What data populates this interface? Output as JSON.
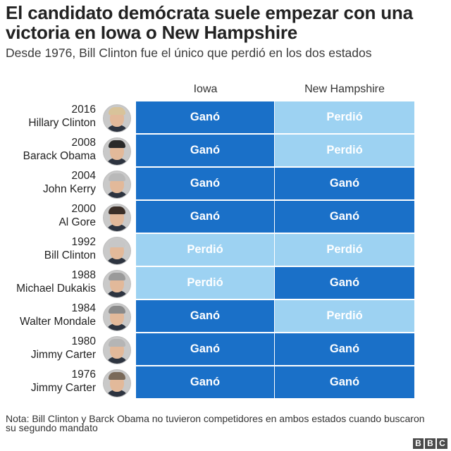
{
  "header": {
    "title": "El candidato demócrata suele empezar con una victoria en Iowa o New Hampshire",
    "subtitle": "Desde 1976, Bill Clinton fue el único que perdió en los dos estados"
  },
  "chart_data": {
    "type": "table",
    "columns": [
      "Iowa",
      "New Hampshire"
    ],
    "rows": [
      {
        "year": "2016",
        "name": "Hillary Clinton",
        "iowa": "Ganó",
        "nh": "Perdió",
        "photo": "hillary-clinton-portrait"
      },
      {
        "year": "2008",
        "name": "Barack Obama",
        "iowa": "Ganó",
        "nh": "Perdió",
        "photo": "barack-obama-portrait"
      },
      {
        "year": "2004",
        "name": "John Kerry",
        "iowa": "Ganó",
        "nh": "Ganó",
        "photo": "john-kerry-portrait"
      },
      {
        "year": "2000",
        "name": "Al Gore",
        "iowa": "Ganó",
        "nh": "Ganó",
        "photo": "al-gore-portrait"
      },
      {
        "year": "1992",
        "name": "Bill Clinton",
        "iowa": "Perdió",
        "nh": "Perdió",
        "photo": "bill-clinton-portrait"
      },
      {
        "year": "1988",
        "name": "Michael Dukakis",
        "iowa": "Perdió",
        "nh": "Ganó",
        "photo": "michael-dukakis-portrait"
      },
      {
        "year": "1984",
        "name": "Walter Mondale",
        "iowa": "Ganó",
        "nh": "Perdió",
        "photo": "walter-mondale-portrait"
      },
      {
        "year": "1980",
        "name": "Jimmy Carter",
        "iowa": "Ganó",
        "nh": "Ganó",
        "photo": "jimmy-carter-portrait"
      },
      {
        "year": "1976",
        "name": "Jimmy Carter",
        "iowa": "Ganó",
        "nh": "Ganó",
        "photo": "jimmy-carter-portrait"
      }
    ],
    "colors": {
      "Ganó": "#1a70c8",
      "Perdió": "#9dd2f2"
    }
  },
  "footer": {
    "note": "Nota: Bill Clinton y Barck Obama no tuvieron competidores en ambos estados cuando buscaron su segundo mandato",
    "logo": [
      "B",
      "B",
      "C"
    ]
  }
}
